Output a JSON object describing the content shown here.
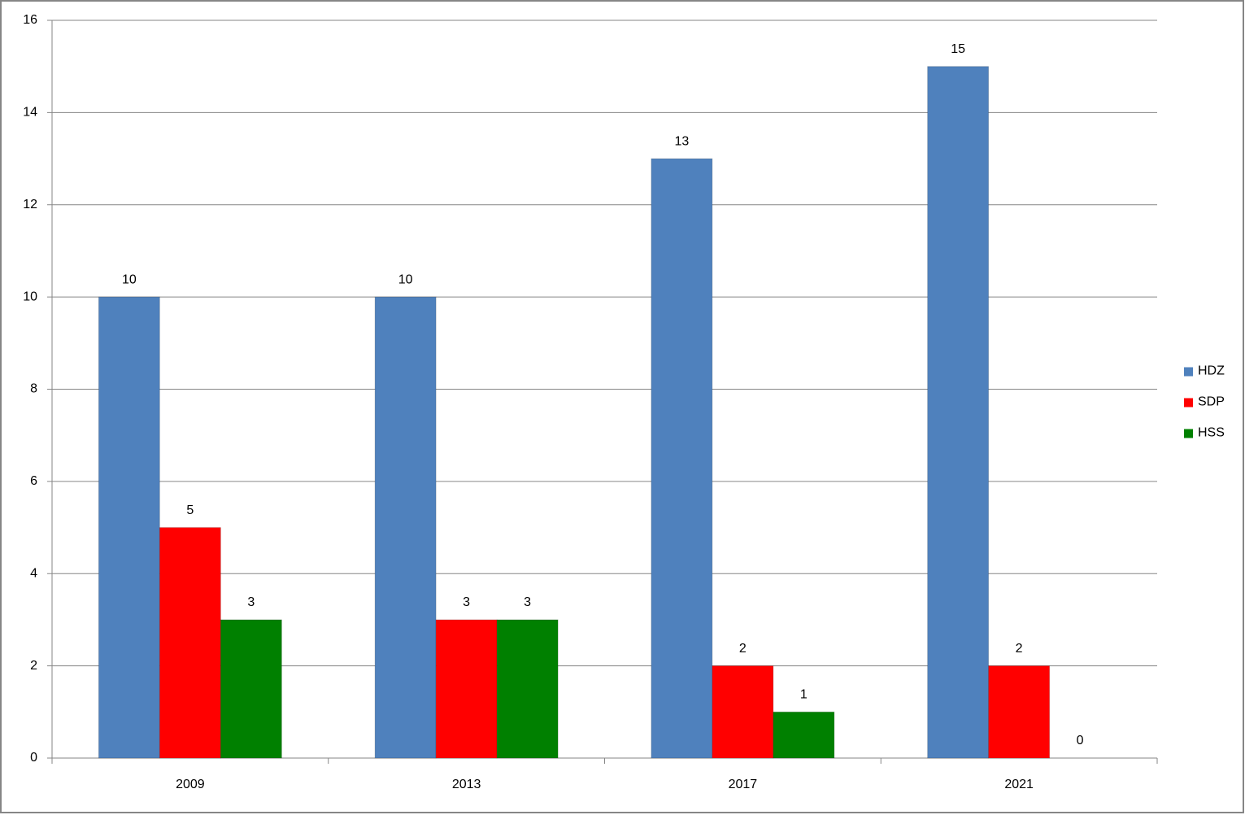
{
  "chart_data": {
    "type": "bar",
    "categories": [
      "2009",
      "2013",
      "2017",
      "2021"
    ],
    "series": [
      {
        "name": "HDZ",
        "color": "#4f81bd",
        "values": [
          10,
          10,
          13,
          15
        ]
      },
      {
        "name": "SDP",
        "color": "#ff0000",
        "values": [
          5,
          3,
          2,
          2
        ]
      },
      {
        "name": "HSS",
        "color": "#008000",
        "values": [
          3,
          3,
          1,
          0
        ]
      }
    ],
    "ylim": [
      0,
      16
    ],
    "yticks": [
      0,
      2,
      4,
      6,
      8,
      10,
      12,
      14,
      16
    ],
    "grid": true,
    "legend": "right"
  }
}
